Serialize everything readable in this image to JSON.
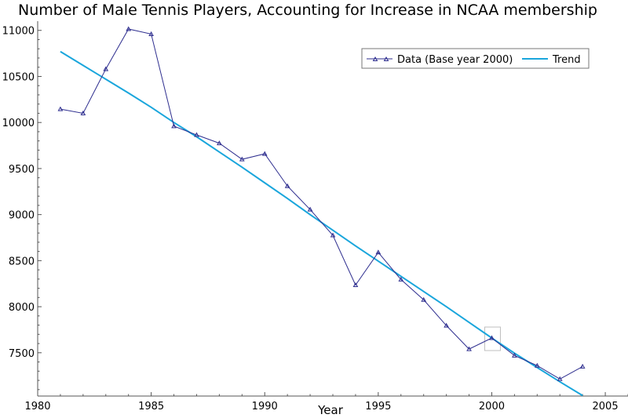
{
  "chart_data": {
    "type": "line",
    "title": "Number of Male Tennis Players, Accounting for Increase in NCAA membership",
    "xlabel": "Year",
    "ylabel": "",
    "xlim": [
      1980,
      2006
    ],
    "ylim": [
      7030,
      11100
    ],
    "xticks": [
      1980,
      1985,
      1990,
      1995,
      2000,
      2005
    ],
    "yticks": [
      7500,
      8000,
      8500,
      9000,
      9500,
      10000,
      10500,
      11000
    ],
    "grid": false,
    "legend_position": "top-right",
    "colors": {
      "data": "#2e2e8f",
      "trend": "#1aa6dc",
      "highlight_box": "#bfbfbf"
    },
    "series": [
      {
        "name": "Data (Base year 2000)",
        "marker": "triangle",
        "x": [
          1981,
          1982,
          1983,
          1984,
          1985,
          1986,
          1987,
          1988,
          1989,
          1990,
          1991,
          1992,
          1993,
          1994,
          1995,
          1996,
          1997,
          1998,
          1999,
          2000,
          2001,
          2002,
          2003,
          2004
        ],
        "y": [
          10145,
          10100,
          10580,
          11015,
          10960,
          9960,
          9865,
          9775,
          9600,
          9660,
          9310,
          9055,
          8775,
          8235,
          8590,
          8295,
          8075,
          7795,
          7540,
          7660,
          7470,
          7360,
          7215,
          7350
        ]
      },
      {
        "name": "Trend",
        "x": [
          1981,
          1982,
          1983,
          1984,
          1985,
          1986,
          1987,
          1988,
          1989,
          1990,
          1991,
          1992,
          1993,
          1994,
          1995,
          1996,
          1997,
          1998,
          1999,
          2000,
          2001,
          2002,
          2003,
          2004
        ],
        "y": [
          10770,
          10620,
          10470,
          10320,
          10165,
          10000,
          9845,
          9680,
          9515,
          9345,
          9175,
          9000,
          8830,
          8660,
          8495,
          8330,
          8165,
          8000,
          7830,
          7660,
          7495,
          7340,
          7185,
          7035
        ]
      }
    ],
    "highlight": {
      "x": 2000,
      "y": 7660
    }
  }
}
